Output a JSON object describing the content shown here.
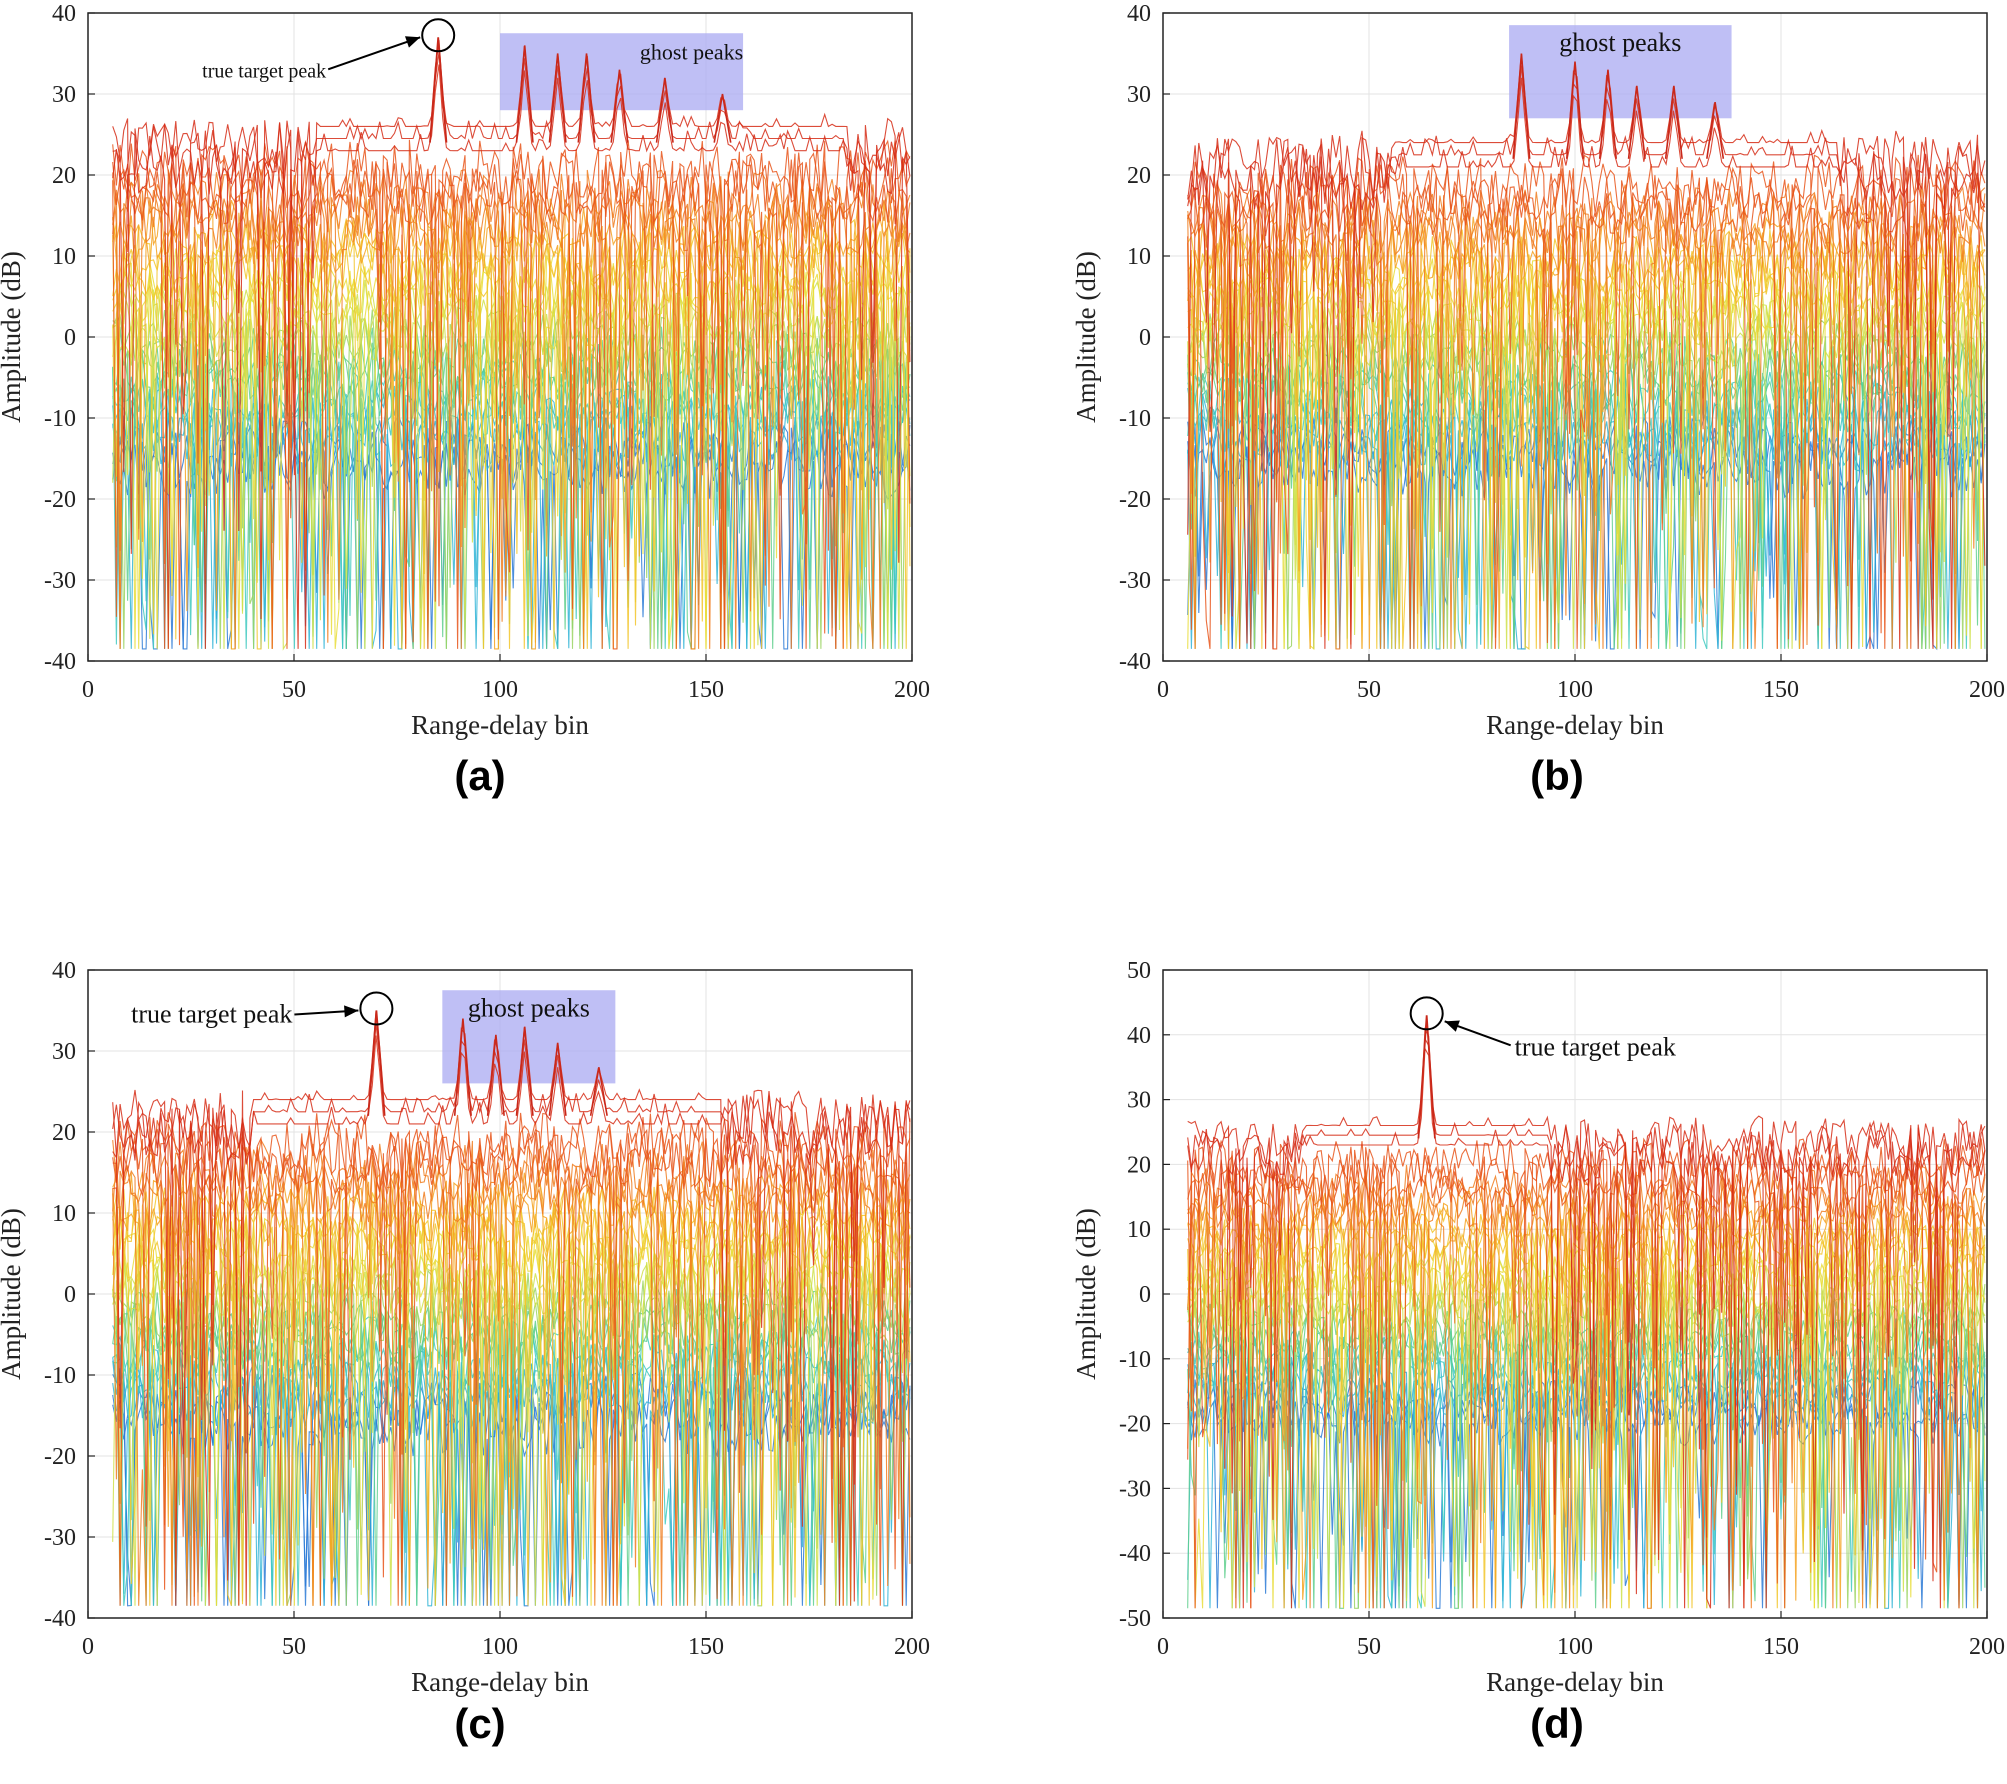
{
  "chart_data": [
    {
      "type": "line",
      "panel_label": "(a)",
      "xlabel": "Range-delay bin",
      "ylabel": "Amplitude (dB)",
      "xlim": [
        0,
        200
      ],
      "ylim": [
        -40,
        40
      ],
      "xticks": [
        0,
        50,
        100,
        150,
        200
      ],
      "yticks": [
        -40,
        -30,
        -20,
        -10,
        0,
        10,
        20,
        30,
        40
      ],
      "grid": true,
      "noise_ceiling_db": 26,
      "true_peak": {
        "x": 85,
        "y": 37
      },
      "ghost_peaks": [
        {
          "x": 106,
          "y": 36
        },
        {
          "x": 114,
          "y": 35
        },
        {
          "x": 121,
          "y": 35
        },
        {
          "x": 129,
          "y": 33
        },
        {
          "x": 140,
          "y": 32
        },
        {
          "x": 154,
          "y": 30
        }
      ],
      "ghost_region": {
        "x": [
          100,
          159
        ],
        "y": [
          28,
          37.5
        ]
      },
      "annotations": {
        "true_peak_label": "true target peak",
        "ghost_label": "ghost peaks"
      }
    },
    {
      "type": "line",
      "panel_label": "(b)",
      "xlabel": "Range-delay bin",
      "ylabel": "Amplitude (dB)",
      "xlim": [
        0,
        200
      ],
      "ylim": [
        -40,
        40
      ],
      "xticks": [
        0,
        50,
        100,
        150,
        200
      ],
      "yticks": [
        -40,
        -30,
        -20,
        -10,
        0,
        10,
        20,
        30,
        40
      ],
      "grid": true,
      "noise_ceiling_db": 24,
      "true_peak": null,
      "ghost_peaks": [
        {
          "x": 87,
          "y": 35
        },
        {
          "x": 100,
          "y": 34
        },
        {
          "x": 108,
          "y": 33
        },
        {
          "x": 115,
          "y": 31
        },
        {
          "x": 124,
          "y": 31
        },
        {
          "x": 134,
          "y": 29
        }
      ],
      "ghost_region": {
        "x": [
          84,
          138
        ],
        "y": [
          27,
          38.5
        ]
      },
      "annotations": {
        "true_peak_label": "",
        "ghost_label": "ghost peaks"
      }
    },
    {
      "type": "line",
      "panel_label": "(c)",
      "xlabel": "Range-delay bin",
      "ylabel": "Amplitude (dB)",
      "xlim": [
        0,
        200
      ],
      "ylim": [
        -40,
        40
      ],
      "xticks": [
        0,
        50,
        100,
        150,
        200
      ],
      "yticks": [
        -40,
        -30,
        -20,
        -10,
        0,
        10,
        20,
        30,
        40
      ],
      "grid": true,
      "noise_ceiling_db": 24,
      "true_peak": {
        "x": 70,
        "y": 35
      },
      "ghost_peaks": [
        {
          "x": 91,
          "y": 34
        },
        {
          "x": 99,
          "y": 32
        },
        {
          "x": 106,
          "y": 33
        },
        {
          "x": 114,
          "y": 31
        },
        {
          "x": 124,
          "y": 28
        }
      ],
      "ghost_region": {
        "x": [
          86,
          128
        ],
        "y": [
          26,
          37.5
        ]
      },
      "annotations": {
        "true_peak_label": "true target peak",
        "ghost_label": "ghost peaks"
      }
    },
    {
      "type": "line",
      "panel_label": "(d)",
      "xlabel": "Range-delay bin",
      "ylabel": "Amplitude (dB)",
      "xlim": [
        0,
        200
      ],
      "ylim": [
        -50,
        50
      ],
      "xticks": [
        0,
        50,
        100,
        150,
        200
      ],
      "yticks": [
        -50,
        -40,
        -30,
        -20,
        -10,
        0,
        10,
        20,
        30,
        40,
        50
      ],
      "grid": true,
      "noise_ceiling_db": 26,
      "true_peak": {
        "x": 64,
        "y": 43
      },
      "ghost_peaks": [],
      "ghost_region": null,
      "annotations": {
        "true_peak_label": "true target peak",
        "ghost_label": ""
      }
    }
  ]
}
